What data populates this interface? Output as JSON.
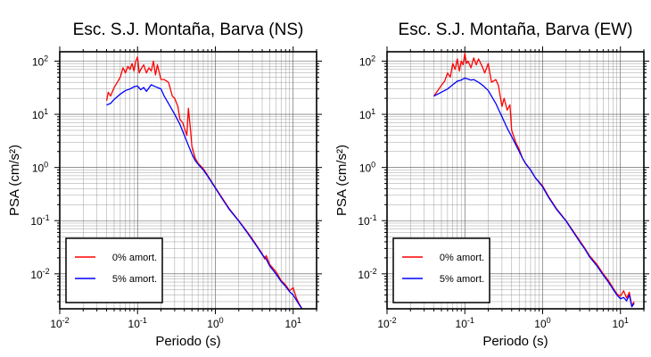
{
  "chart_data": [
    {
      "type": "line",
      "title": "Esc. S.J. Montaña, Barva (NS)",
      "xlabel": "Periodo (s)",
      "ylabel": "PSA (cm/s²)",
      "xscale": "log",
      "yscale": "log",
      "xlim": [
        0.01,
        20
      ],
      "ylim": [
        0.0022,
        150
      ],
      "grid": true,
      "legend_position": "bottom-left",
      "series": [
        {
          "name": "0% amort.",
          "color": "#ff0000",
          "points": [
            [
              0.04,
              18
            ],
            [
              0.042,
              26
            ],
            [
              0.045,
              22
            ],
            [
              0.05,
              32
            ],
            [
              0.055,
              40
            ],
            [
              0.06,
              50
            ],
            [
              0.065,
              75
            ],
            [
              0.07,
              60
            ],
            [
              0.075,
              80
            ],
            [
              0.08,
              70
            ],
            [
              0.085,
              90
            ],
            [
              0.09,
              65
            ],
            [
              0.095,
              100
            ],
            [
              0.1,
              120
            ],
            [
              0.105,
              60
            ],
            [
              0.11,
              70
            ],
            [
              0.12,
              85
            ],
            [
              0.13,
              60
            ],
            [
              0.14,
              75
            ],
            [
              0.15,
              65
            ],
            [
              0.16,
              100
            ],
            [
              0.17,
              55
            ],
            [
              0.18,
              85
            ],
            [
              0.2,
              45
            ],
            [
              0.22,
              45
            ],
            [
              0.25,
              40
            ],
            [
              0.28,
              22
            ],
            [
              0.3,
              20
            ],
            [
              0.33,
              14
            ],
            [
              0.35,
              8
            ],
            [
              0.38,
              7
            ],
            [
              0.4,
              5.5
            ],
            [
              0.43,
              4
            ],
            [
              0.45,
              13
            ],
            [
              0.48,
              5
            ],
            [
              0.5,
              2.5
            ],
            [
              0.55,
              1.5
            ],
            [
              0.6,
              1.2
            ],
            [
              0.7,
              0.95
            ],
            [
              0.8,
              0.7
            ],
            [
              1,
              0.42
            ],
            [
              1.2,
              0.28
            ],
            [
              1.5,
              0.17
            ],
            [
              2,
              0.1
            ],
            [
              2.5,
              0.065
            ],
            [
              3,
              0.045
            ],
            [
              3.5,
              0.032
            ],
            [
              4,
              0.024
            ],
            [
              4.3,
              0.019
            ],
            [
              4.5,
              0.022
            ],
            [
              5,
              0.015
            ],
            [
              6,
              0.011
            ],
            [
              7,
              0.0075
            ],
            [
              8,
              0.0062
            ],
            [
              9,
              0.0048
            ],
            [
              10,
              0.0055
            ],
            [
              11,
              0.0035
            ],
            [
              12,
              0.0027
            ],
            [
              13,
              0.0022
            ]
          ]
        },
        {
          "name": "5% amort.",
          "color": "#0000ff",
          "points": [
            [
              0.04,
              15
            ],
            [
              0.045,
              16
            ],
            [
              0.05,
              19
            ],
            [
              0.06,
              24
            ],
            [
              0.07,
              28
            ],
            [
              0.08,
              30
            ],
            [
              0.09,
              33
            ],
            [
              0.1,
              34
            ],
            [
              0.11,
              29
            ],
            [
              0.12,
              32
            ],
            [
              0.13,
              27
            ],
            [
              0.15,
              36
            ],
            [
              0.17,
              33
            ],
            [
              0.2,
              30
            ],
            [
              0.22,
              22
            ],
            [
              0.25,
              16
            ],
            [
              0.3,
              10
            ],
            [
              0.35,
              6.5
            ],
            [
              0.4,
              4
            ],
            [
              0.45,
              2.6
            ],
            [
              0.5,
              1.8
            ],
            [
              0.55,
              1.35
            ],
            [
              0.6,
              1.15
            ],
            [
              0.7,
              0.9
            ],
            [
              0.8,
              0.68
            ],
            [
              1,
              0.41
            ],
            [
              1.2,
              0.27
            ],
            [
              1.5,
              0.165
            ],
            [
              2,
              0.098
            ],
            [
              2.5,
              0.063
            ],
            [
              3,
              0.043
            ],
            [
              3.5,
              0.031
            ],
            [
              4,
              0.023
            ],
            [
              4.5,
              0.019
            ],
            [
              5,
              0.014
            ],
            [
              6,
              0.01
            ],
            [
              7,
              0.0072
            ],
            [
              8,
              0.0058
            ],
            [
              9,
              0.0046
            ],
            [
              10,
              0.004
            ],
            [
              11,
              0.0032
            ],
            [
              12,
              0.0026
            ],
            [
              13,
              0.0022
            ]
          ]
        }
      ]
    },
    {
      "type": "line",
      "title": "Esc. S.J. Montaña, Barva (EW)",
      "xlabel": "Periodo (s)",
      "ylabel": "PSA (cm/s²)",
      "xscale": "log",
      "yscale": "log",
      "xlim": [
        0.01,
        20
      ],
      "ylim": [
        0.0022,
        150
      ],
      "grid": true,
      "legend_position": "bottom-left",
      "series": [
        {
          "name": "0% amort.",
          "color": "#ff0000",
          "points": [
            [
              0.04,
              22
            ],
            [
              0.045,
              28
            ],
            [
              0.05,
              35
            ],
            [
              0.055,
              42
            ],
            [
              0.06,
              60
            ],
            [
              0.065,
              50
            ],
            [
              0.07,
              90
            ],
            [
              0.075,
              70
            ],
            [
              0.08,
              110
            ],
            [
              0.085,
              65
            ],
            [
              0.09,
              100
            ],
            [
              0.095,
              85
            ],
            [
              0.1,
              140
            ],
            [
              0.105,
              90
            ],
            [
              0.11,
              100
            ],
            [
              0.12,
              75
            ],
            [
              0.13,
              115
            ],
            [
              0.14,
              85
            ],
            [
              0.15,
              110
            ],
            [
              0.17,
              75
            ],
            [
              0.18,
              60
            ],
            [
              0.2,
              90
            ],
            [
              0.22,
              40
            ],
            [
              0.25,
              45
            ],
            [
              0.27,
              35
            ],
            [
              0.3,
              14
            ],
            [
              0.32,
              20
            ],
            [
              0.35,
              12
            ],
            [
              0.38,
              15
            ],
            [
              0.4,
              5
            ],
            [
              0.45,
              3
            ],
            [
              0.5,
              2.2
            ],
            [
              0.55,
              1.5
            ],
            [
              0.6,
              1.2
            ],
            [
              0.7,
              0.9
            ],
            [
              0.8,
              0.65
            ],
            [
              1,
              0.45
            ],
            [
              1.2,
              0.28
            ],
            [
              1.5,
              0.17
            ],
            [
              2,
              0.1
            ],
            [
              2.5,
              0.062
            ],
            [
              3,
              0.042
            ],
            [
              3.5,
              0.03
            ],
            [
              4,
              0.022
            ],
            [
              5,
              0.015
            ],
            [
              6,
              0.01
            ],
            [
              7,
              0.0075
            ],
            [
              8,
              0.0055
            ],
            [
              9,
              0.0042
            ],
            [
              10,
              0.0038
            ],
            [
              11,
              0.0048
            ],
            [
              12,
              0.0035
            ],
            [
              13,
              0.0045
            ],
            [
              14,
              0.0025
            ],
            [
              15,
              0.003
            ]
          ]
        },
        {
          "name": "5% amort.",
          "color": "#0000ff",
          "points": [
            [
              0.04,
              22
            ],
            [
              0.05,
              26
            ],
            [
              0.06,
              30
            ],
            [
              0.07,
              36
            ],
            [
              0.08,
              42
            ],
            [
              0.09,
              44
            ],
            [
              0.1,
              48
            ],
            [
              0.11,
              46
            ],
            [
              0.12,
              44
            ],
            [
              0.13,
              45
            ],
            [
              0.15,
              40
            ],
            [
              0.17,
              35
            ],
            [
              0.2,
              28
            ],
            [
              0.25,
              16
            ],
            [
              0.3,
              9
            ],
            [
              0.35,
              5.5
            ],
            [
              0.4,
              3.8
            ],
            [
              0.45,
              2.7
            ],
            [
              0.5,
              2
            ],
            [
              0.55,
              1.5
            ],
            [
              0.6,
              1.2
            ],
            [
              0.7,
              0.9
            ],
            [
              0.8,
              0.65
            ],
            [
              1,
              0.43
            ],
            [
              1.2,
              0.27
            ],
            [
              1.5,
              0.165
            ],
            [
              2,
              0.098
            ],
            [
              2.5,
              0.06
            ],
            [
              3,
              0.04
            ],
            [
              3.5,
              0.029
            ],
            [
              4,
              0.021
            ],
            [
              5,
              0.014
            ],
            [
              6,
              0.0095
            ],
            [
              7,
              0.007
            ],
            [
              8,
              0.0052
            ],
            [
              9,
              0.004
            ],
            [
              10,
              0.0034
            ],
            [
              11,
              0.0036
            ],
            [
              12,
              0.0031
            ],
            [
              13,
              0.004
            ],
            [
              14,
              0.0024
            ],
            [
              15,
              0.0028
            ]
          ]
        }
      ]
    }
  ]
}
